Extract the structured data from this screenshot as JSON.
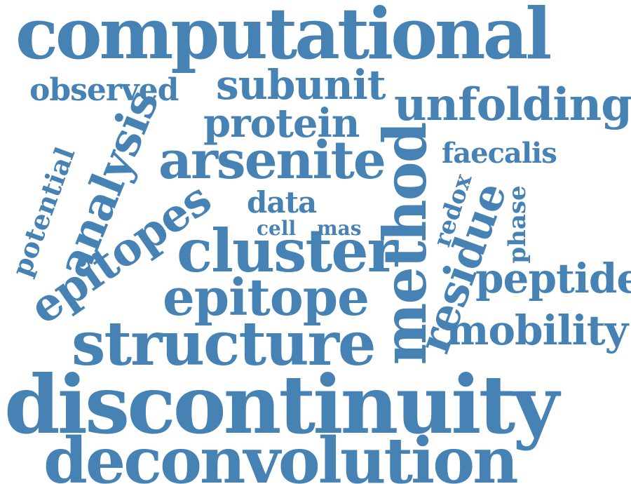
{
  "color": "#4682b4",
  "words": [
    {
      "text": "computational",
      "rotated": false
    },
    {
      "text": "observed",
      "rotated": false
    },
    {
      "text": "subunit",
      "rotated": false
    },
    {
      "text": "unfolding",
      "rotated": false
    },
    {
      "text": "protein",
      "rotated": false
    },
    {
      "text": "analysis",
      "rotated": true
    },
    {
      "text": "arsenite",
      "rotated": false
    },
    {
      "text": "faecalis",
      "rotated": false
    },
    {
      "text": "method",
      "rotated": true
    },
    {
      "text": "potential",
      "rotated": true
    },
    {
      "text": "data",
      "rotated": false
    },
    {
      "text": "redox",
      "rotated": true
    },
    {
      "text": "phase",
      "rotated": true
    },
    {
      "text": "epitopes",
      "rotated": true
    },
    {
      "text": "cell",
      "rotated": false
    },
    {
      "text": "mas",
      "rotated": false
    },
    {
      "text": "cluster",
      "rotated": false
    },
    {
      "text": "residue",
      "rotated": true
    },
    {
      "text": "peptide",
      "rotated": false
    },
    {
      "text": "epitope",
      "rotated": false
    },
    {
      "text": "mobility",
      "rotated": false
    },
    {
      "text": "structure",
      "rotated": false
    },
    {
      "text": "discontinuity",
      "rotated": false
    },
    {
      "text": "deconvolution",
      "rotated": false
    }
  ]
}
